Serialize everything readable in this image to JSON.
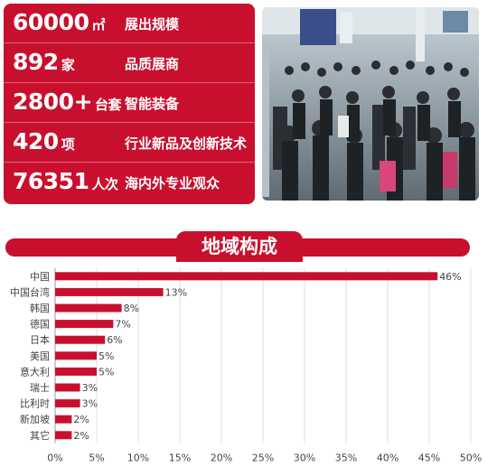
{
  "stats": [
    {
      "value": "60000",
      "unit": "㎡",
      "desc": "展出规模"
    },
    {
      "value": "892",
      "unit": "家",
      "desc": "品质展商"
    },
    {
      "value": "2800+",
      "unit": "台套",
      "desc": "智能装备"
    },
    {
      "value": "420",
      "unit": "项",
      "desc": "行业新品及创新技术"
    },
    {
      "value": "76351",
      "unit": "人次",
      "desc": "海内外专业观众"
    }
  ],
  "colors": {
    "brand_red": "#c8102e",
    "bar_red": "#c8102e",
    "grid": "#dddddd",
    "label": "#444444"
  },
  "chart_data": {
    "type": "bar",
    "orientation": "horizontal",
    "title": "地域构成",
    "categories": [
      "中国",
      "中国台湾",
      "韩国",
      "德国",
      "日本",
      "美国",
      "意大利",
      "瑞士",
      "比利时",
      "新加坡",
      "其它"
    ],
    "values": [
      46,
      13,
      8,
      7,
      6,
      5,
      5,
      3,
      3,
      2,
      2
    ],
    "data_labels": [
      "46%",
      "13%",
      "8%",
      "7%",
      "6%",
      "5%",
      "5%",
      "3%",
      "3%",
      "2%",
      "2%"
    ],
    "x_ticks": [
      "0%",
      "5%",
      "10%",
      "15%",
      "20%",
      "25%",
      "30%",
      "35%",
      "40%",
      "45%",
      "50%"
    ],
    "xlim": [
      0,
      50
    ],
    "grid": true
  }
}
